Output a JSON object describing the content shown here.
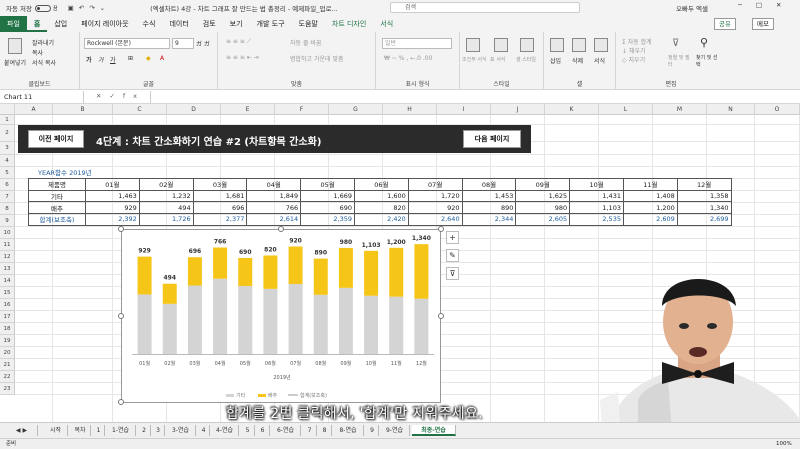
{
  "titlebar": {
    "autosave": "자동 저장",
    "toggle": "끔",
    "document": "(엑셀차트) 4강 - 차트 그래프 잘 만드는 법 총정리 - 예제파일_업로...",
    "search": "검색",
    "user": "오빠두 엑셀"
  },
  "tabs": [
    "홈",
    "삽입",
    "페이지 레이아웃",
    "수식",
    "데이터",
    "검토",
    "보기",
    "개발 도구",
    "도움말",
    "차트 디자인",
    "서식"
  ],
  "file_tab": "파일",
  "share": "공유",
  "memo": "메모",
  "ribbon": {
    "clipboard": {
      "name": "클립보드",
      "paste": "붙여넣기",
      "cut": "잘라내기",
      "copy": "복사",
      "painter": "서식 복사"
    },
    "font": {
      "name": "글꼴",
      "family": "Rockwell (본문)",
      "size": "9",
      "bold": "가",
      "italic": "가",
      "underline": "가"
    },
    "align": {
      "name": "맞춤",
      "wrap": "자동 줄 바꿈",
      "merge": "병합하고 가운데 맞춤"
    },
    "number": {
      "name": "표시 형식",
      "format": "일반"
    },
    "styles": {
      "name": "스타일",
      "cond": "조건부 서식",
      "table": "표 서식",
      "cell": "셀 스타일"
    },
    "cells": {
      "name": "셀",
      "insert": "삽입",
      "delete": "삭제",
      "format": "서식"
    },
    "edit": {
      "name": "편집",
      "autosum": "자동 합계",
      "fill": "채우기",
      "clear": "지우기",
      "sort": "정렬 및 필터",
      "find": "찾기 및 선택"
    }
  },
  "formula_bar": {
    "name_box": "Chart 11",
    "value": ""
  },
  "columns": [
    "A",
    "B",
    "C",
    "D",
    "E",
    "F",
    "G",
    "H",
    "I",
    "J",
    "K",
    "L",
    "M",
    "N",
    "O"
  ],
  "rows": [
    "1",
    "2",
    "3",
    "4",
    "5",
    "6",
    "7",
    "8",
    "9",
    "10",
    "11",
    "12",
    "13",
    "14",
    "15",
    "16",
    "17",
    "18",
    "19",
    "20",
    "21",
    "22",
    "23"
  ],
  "banner": {
    "prev": "이전 페이지",
    "title": "4단계 : 차트 간소화하기 연습 #2 (차트항목 간소화)",
    "next": "다음 페이지"
  },
  "year_label": "YEAR함수 2019년",
  "table": {
    "header": [
      "제품명",
      "01월",
      "02월",
      "03월",
      "04월",
      "05월",
      "06월",
      "07월",
      "08월",
      "09월",
      "10월",
      "11월",
      "12월"
    ],
    "rows": [
      [
        "기타",
        "1,463",
        "1,232",
        "1,681",
        "1,849",
        "1,669",
        "1,600",
        "1,720",
        "1,453",
        "1,625",
        "1,431",
        "1,408",
        "1,358"
      ],
      [
        "배추",
        "929",
        "494",
        "696",
        "766",
        "690",
        "820",
        "920",
        "890",
        "980",
        "1,103",
        "1,200",
        "1,340"
      ],
      [
        "합계(보조축)",
        "2,392",
        "1,726",
        "2,377",
        "2,614",
        "2,359",
        "2,420",
        "2,640",
        "2,344",
        "2,605",
        "2,535",
        "2,609",
        "2,699"
      ]
    ]
  },
  "chart_data": {
    "type": "bar",
    "stacked": true,
    "categories": [
      "01월",
      "02월",
      "03월",
      "04월",
      "05월",
      "06월",
      "07월",
      "08월",
      "09월",
      "10월",
      "11월",
      "12월"
    ],
    "series": [
      {
        "name": "기타",
        "values": [
          1463,
          1232,
          1681,
          1849,
          1669,
          1600,
          1720,
          1453,
          1625,
          1431,
          1408,
          1358
        ],
        "color": "#d4d4d4"
      },
      {
        "name": "배추",
        "values": [
          929,
          494,
          696,
          766,
          690,
          820,
          920,
          890,
          980,
          1103,
          1200,
          1340
        ],
        "color": "#f5c518"
      }
    ],
    "data_labels": [
      "929",
      "494",
      "696",
      "766",
      "690",
      "820",
      "920",
      "890",
      "980",
      "1,103",
      "1,200",
      "1,340"
    ],
    "xlabel": "2019년",
    "legend_label": "합계(보조축)",
    "legend": "bottom",
    "ylim": [
      0,
      2800
    ]
  },
  "subtitle": "합계를 2번 클릭해서, '합계'만 지워주세요.",
  "sheets": [
    "시작",
    "목차",
    "1",
    "1-연습",
    "2",
    "3",
    "3-연습",
    "4",
    "4-연습",
    "5",
    "6",
    "6-연습",
    "7",
    "8",
    "8-연습",
    "9",
    "9-연습",
    "최종-연습"
  ],
  "active_sheet": "최종-연습",
  "status": {
    "ready": "준비",
    "zoom": "100%"
  }
}
